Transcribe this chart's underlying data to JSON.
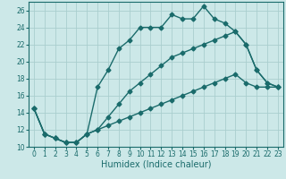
{
  "xlabel": "Humidex (Indice chaleur)",
  "bg_color": "#cce8e8",
  "line_color": "#1a6b6b",
  "grid_color": "#aacece",
  "xlim": [
    -0.5,
    23.5
  ],
  "ylim": [
    10,
    27
  ],
  "xticks": [
    0,
    1,
    2,
    3,
    4,
    5,
    6,
    7,
    8,
    9,
    10,
    11,
    12,
    13,
    14,
    15,
    16,
    17,
    18,
    19,
    20,
    21,
    22,
    23
  ],
  "yticks": [
    10,
    12,
    14,
    16,
    18,
    20,
    22,
    24,
    26
  ],
  "line1_x": [
    0,
    1,
    2,
    3,
    4,
    5,
    6,
    7,
    8,
    9,
    10,
    11,
    12,
    13,
    14,
    15,
    16,
    17,
    18,
    19,
    20,
    21,
    22,
    23
  ],
  "line1_y": [
    14.5,
    11.5,
    11.0,
    10.5,
    10.5,
    11.5,
    17.0,
    19.0,
    21.5,
    22.5,
    24.0,
    24.0,
    24.0,
    25.5,
    25.0,
    25.0,
    26.5,
    25.0,
    24.5,
    23.5,
    22.0,
    19.0,
    17.5,
    17.0
  ],
  "line2_x": [
    0,
    1,
    2,
    3,
    4,
    5,
    6,
    7,
    8,
    9,
    10,
    11,
    12,
    13,
    14,
    15,
    16,
    17,
    18,
    19,
    20,
    21,
    22,
    23
  ],
  "line2_y": [
    14.5,
    11.5,
    11.0,
    10.5,
    10.5,
    11.5,
    12.0,
    13.5,
    15.0,
    16.5,
    17.5,
    18.5,
    19.5,
    20.5,
    21.0,
    21.5,
    22.0,
    22.5,
    23.0,
    23.5,
    22.0,
    19.0,
    17.5,
    17.0
  ],
  "line3_x": [
    0,
    1,
    2,
    3,
    4,
    5,
    6,
    7,
    8,
    9,
    10,
    11,
    12,
    13,
    14,
    15,
    16,
    17,
    18,
    19,
    20,
    21,
    22,
    23
  ],
  "line3_y": [
    14.5,
    11.5,
    11.0,
    10.5,
    10.5,
    11.5,
    12.0,
    12.5,
    13.0,
    13.5,
    14.0,
    14.5,
    15.0,
    15.5,
    16.0,
    16.5,
    17.0,
    17.5,
    18.0,
    18.5,
    17.5,
    17.0,
    17.0,
    17.0
  ],
  "marker": "D",
  "markersize": 2.5,
  "linewidth": 1.0,
  "xlabel_fontsize": 7,
  "tick_fontsize": 5.5
}
